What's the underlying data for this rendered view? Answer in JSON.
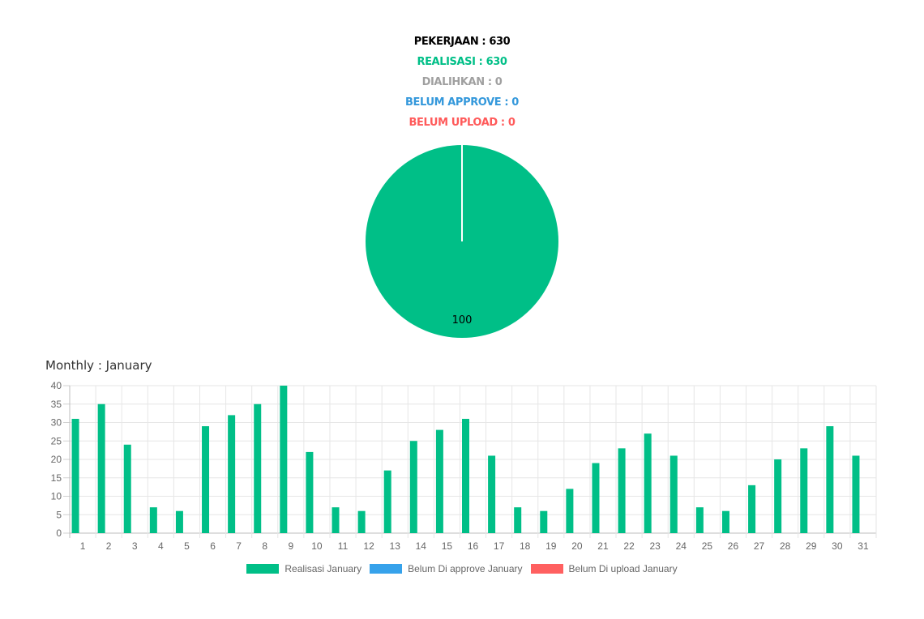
{
  "summary": {
    "pekerjaan": "PEKERJAAN : 630",
    "realisasi": "REALISASI : 630",
    "dialihkan": "DIALIHKAN : 0",
    "belum_approve": "BELUM APPROVE : 0",
    "belum_upload": "BELUM UPLOAD : 0"
  },
  "colors": {
    "pekerjaan": "#000000",
    "realisasi": "#00bf87",
    "dialihkan": "#a0a0a0",
    "belum_approve": "#3498db",
    "belum_upload": "#ff5a5a"
  },
  "monthly_title": "Monthly : January",
  "legend": [
    {
      "label": "Realisasi January",
      "color": "#00bf87"
    },
    {
      "label": "Belum Di approve January",
      "color": "#36a2eb"
    },
    {
      "label": "Belum Di upload January",
      "color": "#ff6060"
    }
  ],
  "chart_data": [
    {
      "type": "pie",
      "slices": [
        {
          "value": 100,
          "label": "100",
          "color": "#00bf87"
        }
      ]
    },
    {
      "type": "bar",
      "categories": [
        "1",
        "2",
        "3",
        "4",
        "5",
        "6",
        "7",
        "8",
        "9",
        "10",
        "11",
        "12",
        "13",
        "14",
        "15",
        "16",
        "17",
        "18",
        "19",
        "20",
        "21",
        "22",
        "23",
        "24",
        "25",
        "26",
        "27",
        "28",
        "29",
        "30",
        "31"
      ],
      "series": [
        {
          "name": "Realisasi January",
          "color": "#00bf87",
          "values": [
            31,
            35,
            24,
            7,
            6,
            29,
            32,
            35,
            40,
            22,
            7,
            6,
            17,
            25,
            28,
            31,
            21,
            7,
            6,
            12,
            19,
            23,
            27,
            21,
            7,
            6,
            13,
            20,
            23,
            29,
            21
          ]
        },
        {
          "name": "Belum Di approve January",
          "color": "#36a2eb",
          "values": [
            0,
            0,
            0,
            0,
            0,
            0,
            0,
            0,
            0,
            0,
            0,
            0,
            0,
            0,
            0,
            0,
            0,
            0,
            0,
            0,
            0,
            0,
            0,
            0,
            0,
            0,
            0,
            0,
            0,
            0,
            0
          ]
        },
        {
          "name": "Belum Di upload January",
          "color": "#ff6060",
          "values": [
            0,
            0,
            0,
            0,
            0,
            0,
            0,
            0,
            0,
            0,
            0,
            0,
            0,
            0,
            0,
            0,
            0,
            0,
            0,
            0,
            0,
            0,
            0,
            0,
            0,
            0,
            0,
            0,
            0,
            0,
            0
          ]
        }
      ],
      "ylim": [
        0,
        40
      ],
      "yticks": [
        0,
        5,
        10,
        15,
        20,
        25,
        30,
        35,
        40
      ],
      "grid": true,
      "legend_position": "bottom"
    }
  ]
}
